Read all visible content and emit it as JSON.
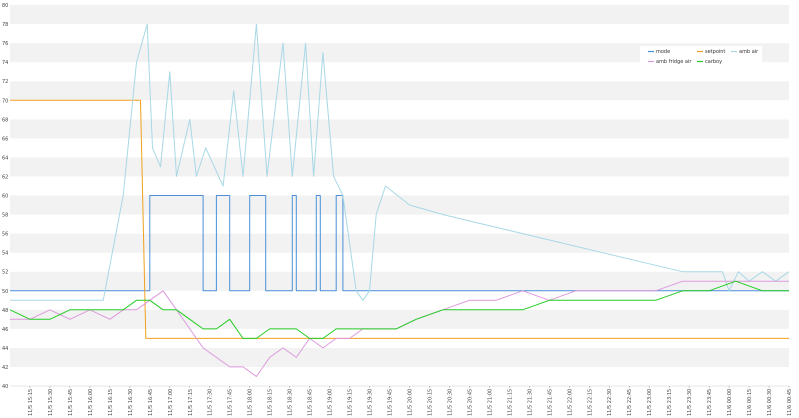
{
  "chart_data": {
    "type": "line",
    "title": "",
    "xlabel": "",
    "ylabel": "",
    "ylim": [
      40,
      80
    ],
    "y_ticks": [
      40,
      42,
      44,
      46,
      48,
      50,
      52,
      54,
      56,
      58,
      60,
      62,
      64,
      66,
      68,
      70,
      72,
      74,
      76,
      78,
      80
    ],
    "grid": "horizontal alternating bands",
    "legend_position": "top-right",
    "x_start_minutes": 915,
    "x_end_minutes": 1500,
    "x_ticks": [
      "11/5 15:15",
      "11/5 15:30",
      "11/5 15:45",
      "11/5 16:00",
      "11/5 16:15",
      "11/5 16:30",
      "11/5 16:45",
      "11/5 17:00",
      "11/5 17:15",
      "11/5 17:30",
      "11/5 17:45",
      "11/5 18:00",
      "11/5 18:15",
      "11/5 18:30",
      "11/5 18:45",
      "11/5 19:00",
      "11/5 19:15",
      "11/5 19:30",
      "11/5 19:45",
      "11/5 20:00",
      "11/5 20:15",
      "11/5 20:30",
      "11/5 20:45",
      "11/5 21:00",
      "11/5 21:15",
      "11/5 21:30",
      "11/5 21:45",
      "11/5 22:00",
      "11/5 22:15",
      "11/5 22:30",
      "11/5 22:45",
      "11/5 23:00",
      "11/5 23:15",
      "11/5 23:30",
      "11/5 23:45",
      "11/6 00:00",
      "11/6 00:15",
      "11/6 00:30",
      "11/6 00:45",
      "11/6 01:00"
    ],
    "series": [
      {
        "name": "mode",
        "color": "#4a90d9",
        "points": [
          [
            915,
            50
          ],
          [
            1020,
            50
          ],
          [
            1020,
            60
          ],
          [
            1060,
            60
          ],
          [
            1060,
            50
          ],
          [
            1070,
            50
          ],
          [
            1070,
            60
          ],
          [
            1080,
            60
          ],
          [
            1080,
            50
          ],
          [
            1095,
            50
          ],
          [
            1095,
            60
          ],
          [
            1107,
            60
          ],
          [
            1107,
            50
          ],
          [
            1127,
            50
          ],
          [
            1127,
            60
          ],
          [
            1130,
            60
          ],
          [
            1130,
            50
          ],
          [
            1145,
            50
          ],
          [
            1145,
            60
          ],
          [
            1148,
            60
          ],
          [
            1148,
            50
          ],
          [
            1160,
            50
          ],
          [
            1160,
            60
          ],
          [
            1165,
            60
          ],
          [
            1165,
            50
          ],
          [
            1500,
            50
          ]
        ]
      },
      {
        "name": "setpoint",
        "color": "#f0a020",
        "points": [
          [
            915,
            70
          ],
          [
            1013,
            70
          ],
          [
            1017,
            45
          ],
          [
            1500,
            45
          ]
        ]
      },
      {
        "name": "amb air",
        "color": "#a8d8e6",
        "points": [
          [
            915,
            49
          ],
          [
            985,
            49
          ],
          [
            1000,
            60
          ],
          [
            1010,
            74
          ],
          [
            1018,
            78
          ],
          [
            1022,
            65
          ],
          [
            1028,
            63
          ],
          [
            1035,
            73
          ],
          [
            1040,
            62
          ],
          [
            1050,
            68
          ],
          [
            1055,
            62
          ],
          [
            1062,
            65
          ],
          [
            1075,
            61
          ],
          [
            1083,
            71
          ],
          [
            1090,
            62
          ],
          [
            1100,
            78
          ],
          [
            1108,
            62
          ],
          [
            1120,
            76
          ],
          [
            1127,
            62
          ],
          [
            1137,
            76
          ],
          [
            1143,
            62
          ],
          [
            1150,
            75
          ],
          [
            1158,
            62
          ],
          [
            1165,
            60
          ],
          [
            1175,
            50
          ],
          [
            1180,
            49
          ],
          [
            1185,
            50
          ],
          [
            1190,
            58
          ],
          [
            1197,
            61
          ],
          [
            1215,
            59
          ],
          [
            1240,
            58
          ],
          [
            1270,
            57
          ],
          [
            1300,
            56
          ],
          [
            1330,
            55
          ],
          [
            1360,
            54
          ],
          [
            1390,
            53
          ],
          [
            1420,
            52
          ],
          [
            1440,
            52
          ],
          [
            1450,
            52
          ],
          [
            1455,
            50
          ],
          [
            1462,
            52
          ],
          [
            1470,
            51
          ],
          [
            1480,
            52
          ],
          [
            1490,
            51
          ],
          [
            1500,
            52
          ]
        ]
      },
      {
        "name": "amb fridge air",
        "color": "#dd99dd",
        "points": [
          [
            915,
            47
          ],
          [
            930,
            47
          ],
          [
            945,
            48
          ],
          [
            960,
            47
          ],
          [
            975,
            48
          ],
          [
            990,
            47
          ],
          [
            1000,
            48
          ],
          [
            1010,
            48
          ],
          [
            1020,
            49
          ],
          [
            1030,
            50
          ],
          [
            1040,
            48
          ],
          [
            1050,
            46
          ],
          [
            1060,
            44
          ],
          [
            1070,
            43
          ],
          [
            1080,
            42
          ],
          [
            1090,
            42
          ],
          [
            1100,
            41
          ],
          [
            1110,
            43
          ],
          [
            1120,
            44
          ],
          [
            1130,
            43
          ],
          [
            1140,
            45
          ],
          [
            1150,
            44
          ],
          [
            1160,
            45
          ],
          [
            1170,
            45
          ],
          [
            1180,
            46
          ],
          [
            1190,
            46
          ],
          [
            1205,
            46
          ],
          [
            1220,
            47
          ],
          [
            1240,
            48
          ],
          [
            1260,
            49
          ],
          [
            1280,
            49
          ],
          [
            1300,
            50
          ],
          [
            1320,
            49
          ],
          [
            1340,
            50
          ],
          [
            1360,
            50
          ],
          [
            1380,
            50
          ],
          [
            1400,
            50
          ],
          [
            1420,
            51
          ],
          [
            1440,
            51
          ],
          [
            1460,
            51
          ],
          [
            1480,
            51
          ],
          [
            1500,
            51
          ]
        ]
      },
      {
        "name": "carboy",
        "color": "#22cc22",
        "points": [
          [
            915,
            48
          ],
          [
            930,
            47
          ],
          [
            945,
            47
          ],
          [
            960,
            48
          ],
          [
            975,
            48
          ],
          [
            990,
            48
          ],
          [
            1000,
            48
          ],
          [
            1010,
            49
          ],
          [
            1020,
            49
          ],
          [
            1030,
            48
          ],
          [
            1040,
            48
          ],
          [
            1050,
            47
          ],
          [
            1060,
            46
          ],
          [
            1070,
            46
          ],
          [
            1080,
            47
          ],
          [
            1090,
            45
          ],
          [
            1100,
            45
          ],
          [
            1110,
            46
          ],
          [
            1120,
            46
          ],
          [
            1130,
            46
          ],
          [
            1140,
            45
          ],
          [
            1150,
            45
          ],
          [
            1160,
            46
          ],
          [
            1170,
            46
          ],
          [
            1180,
            46
          ],
          [
            1190,
            46
          ],
          [
            1205,
            46
          ],
          [
            1220,
            47
          ],
          [
            1240,
            48
          ],
          [
            1260,
            48
          ],
          [
            1280,
            48
          ],
          [
            1300,
            48
          ],
          [
            1320,
            49
          ],
          [
            1340,
            49
          ],
          [
            1360,
            49
          ],
          [
            1380,
            49
          ],
          [
            1400,
            49
          ],
          [
            1420,
            50
          ],
          [
            1440,
            50
          ],
          [
            1460,
            51
          ],
          [
            1480,
            50
          ],
          [
            1500,
            50
          ]
        ]
      }
    ]
  }
}
